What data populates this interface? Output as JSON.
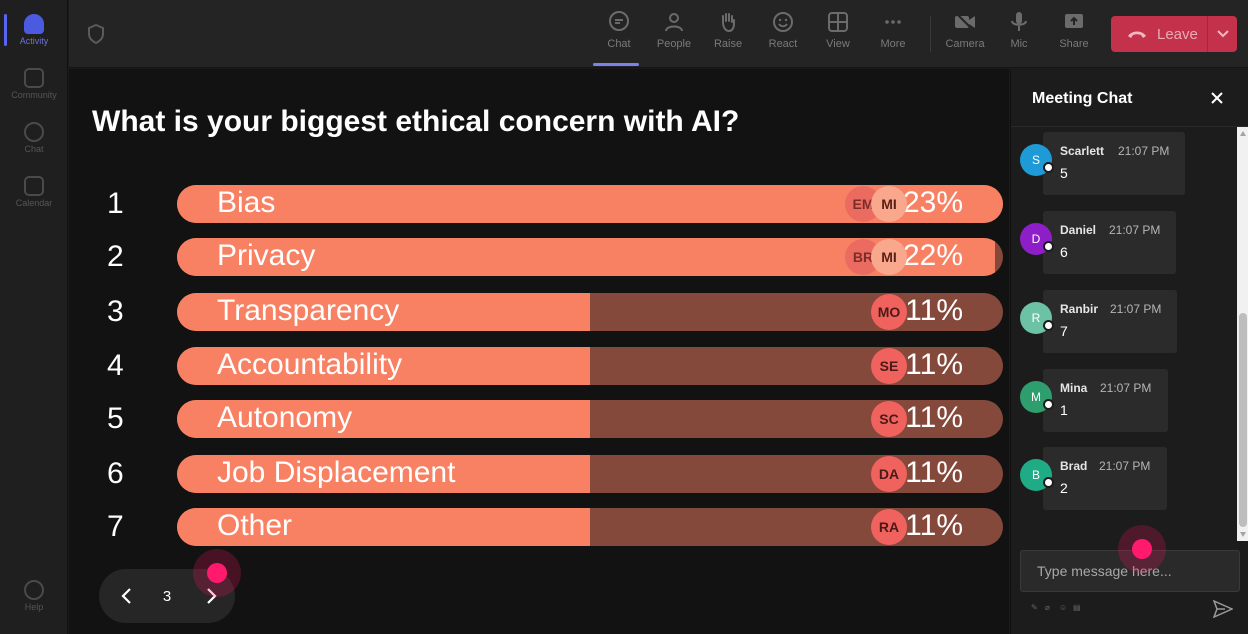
{
  "rail": {
    "items": [
      {
        "label": "Activity",
        "active": true
      },
      {
        "label": "Community",
        "active": false
      },
      {
        "label": "Chat",
        "active": false
      },
      {
        "label": "Calendar",
        "active": false
      }
    ],
    "help": "Help"
  },
  "toolbar": {
    "chat": "Chat",
    "people": "People",
    "raise": "Raise",
    "react": "React",
    "view": "View",
    "more": "More",
    "camera": "Camera",
    "mic": "Mic",
    "share": "Share",
    "leave": "Leave"
  },
  "poll": {
    "question": "What is your biggest ethical concern with AI?",
    "options": [
      {
        "num": "1",
        "label": "Bias",
        "pct": "23%",
        "value": 23,
        "avatars": [
          "EM",
          "MI"
        ]
      },
      {
        "num": "2",
        "label": "Privacy",
        "pct": "22%",
        "value": 22,
        "avatars": [
          "BR",
          "MI"
        ]
      },
      {
        "num": "3",
        "label": "Transparency",
        "pct": "11%",
        "value": 11,
        "avatars": [
          "MO"
        ]
      },
      {
        "num": "4",
        "label": "Accountability",
        "pct": "11%",
        "value": 11,
        "avatars": [
          "SE"
        ]
      },
      {
        "num": "5",
        "label": "Autonomy",
        "pct": "11%",
        "value": 11,
        "avatars": [
          "SC"
        ]
      },
      {
        "num": "6",
        "label": "Job Displacement",
        "pct": "11%",
        "value": 11,
        "avatars": [
          "DA"
        ]
      },
      {
        "num": "7",
        "label": "Other",
        "pct": "11%",
        "value": 11,
        "avatars": [
          "RA"
        ]
      }
    ]
  },
  "pager": {
    "page": "3"
  },
  "chat": {
    "title": "Meeting Chat",
    "messages": [
      {
        "initial": "S",
        "name": "Scarlett",
        "time": "21:07 PM",
        "text": "5",
        "color": "#1e9bd7"
      },
      {
        "initial": "D",
        "name": "Daniel",
        "time": "21:07 PM",
        "text": "6",
        "color": "#8e1fc8"
      },
      {
        "initial": "R",
        "name": "Ranbir",
        "time": "21:07 PM",
        "text": "7",
        "color": "#6cc2a4"
      },
      {
        "initial": "M",
        "name": "Mina",
        "time": "21:07 PM",
        "text": "1",
        "color": "#2f9e6e"
      },
      {
        "initial": "B",
        "name": "Brad",
        "time": "21:07 PM",
        "text": "2",
        "color": "#1eab86"
      }
    ],
    "placeholder": "Type message here..."
  }
}
